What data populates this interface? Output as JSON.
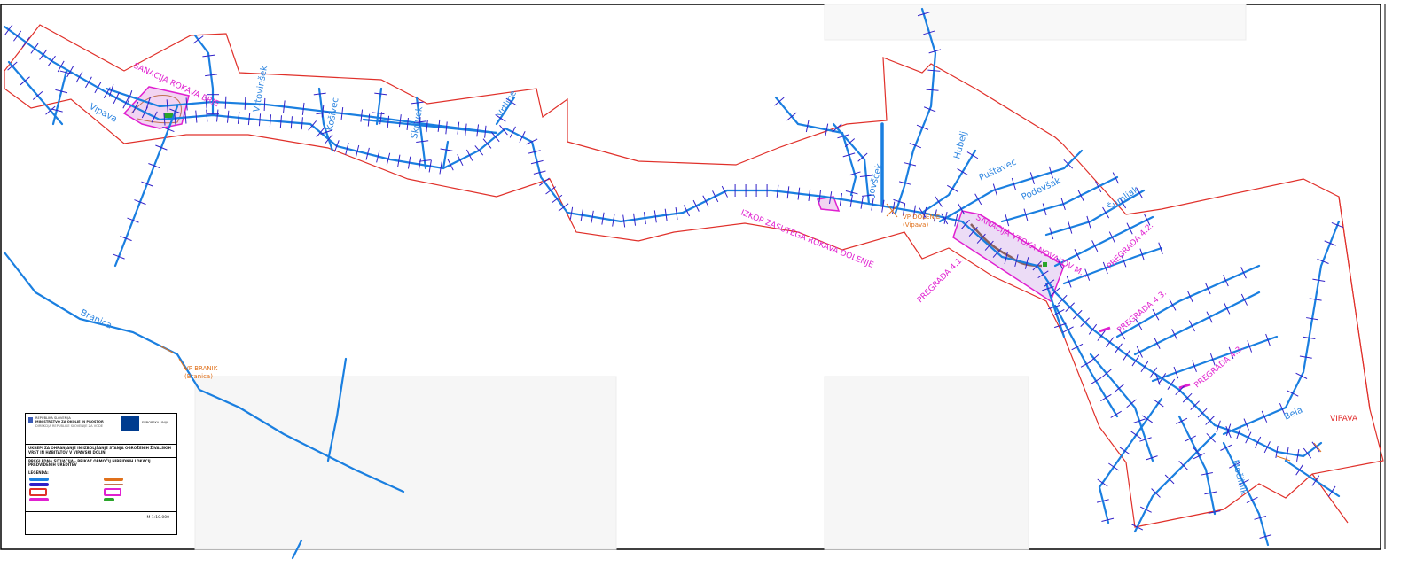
{
  "colors": {
    "river": "#1a7fe0",
    "tick": "#3020c8",
    "boundary": "#e0302a",
    "intervention": "#e020d0",
    "gauge": "#e0701a",
    "channel": "#8a6060",
    "marker": "#2aa52a"
  },
  "labels": {
    "vipava": "Vipava",
    "sanacija_brje": "SANACIJA ROKAVA BRJE",
    "vrtovinsek": "Vrtovinšek",
    "kosivec": "Košivec",
    "skrivek": "Skrivek",
    "vrtline": "Vrtline",
    "izkop": "IZKOP ZASUTEGA ROKAVA DOLENJE",
    "jovscek": "Jovšček",
    "vp_dolenje": "VP DOLENJE",
    "vp_dolenje_river": "(Vipava)",
    "hubelj": "Hubelj",
    "pustavec": "Puštavec",
    "podevsak": "Podevšak",
    "sumljak": "Šumljak",
    "sanacija_vtoka": "SANACIJA VTOKA NOVAKOV M...",
    "pregrada_41": "PREGRADA 4.1.",
    "pregrada_42": "PREGRADA 4.2.",
    "pregrada_43a": "PREGRADA 4.3.",
    "pregrada_43b": "PREGRADA 4.3.",
    "bela": "Bela",
    "mocilnik": "Močilnik",
    "vipava_town": "VIPAVA",
    "branica": "Branica",
    "vp_branik": "VP BRANIK",
    "vp_branik_river": "(Branica)"
  },
  "legend": {
    "republic": "REPUBLIKA SLOVENIJA",
    "ministry": "MINISTRSTVO ZA OKOLJE IN PROSTOR",
    "directorate": "DIREKCIJA REPUBLIKE SLOVENIJE ZA VODE",
    "eu": "EVROPSKA UNIJA",
    "project_title": "UKREPI ZA OHRANJANJE IN IZBOLJŠANJE STANJA OGROŽENIH ŽIVALSKIH VRST IN HABITATOV V VIPAVSKI DOLINI",
    "sheet_title": "PREGLEDNA SITUACIJA - PRIKAZ OBMOČIJ HIBRIDNIH LOKACIJ PREDVIDENIH UREDITEV",
    "legend_title": "LEGENDA:",
    "scale": "M 1:10.000"
  }
}
